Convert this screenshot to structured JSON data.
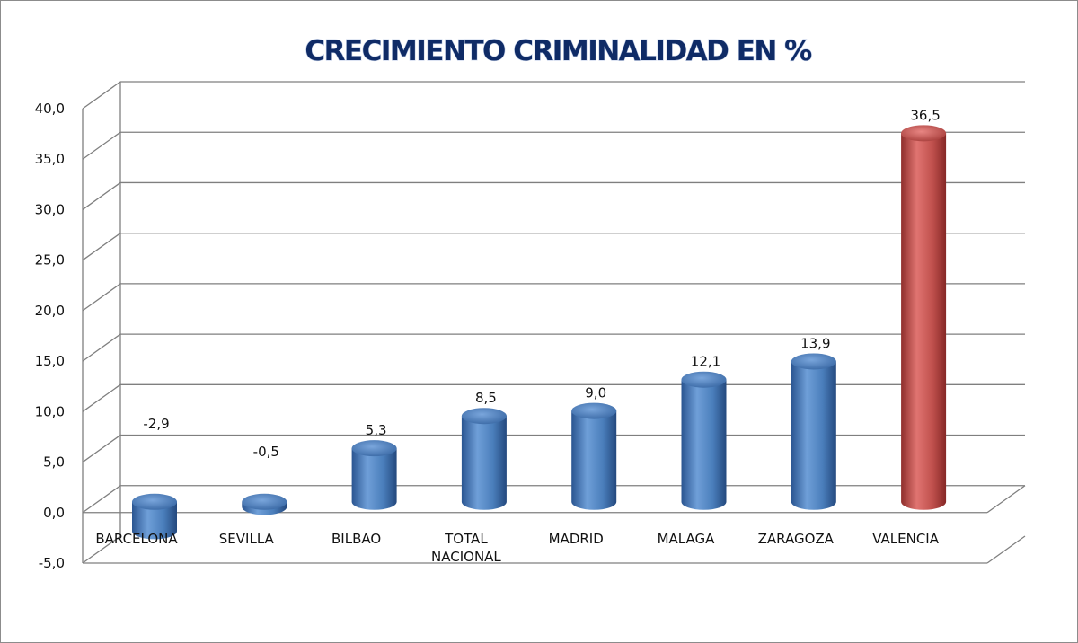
{
  "chart_data": {
    "type": "bar",
    "title": "CRECIMIENTO CRIMINALIDAD EN %",
    "categories": [
      "BARCELONA",
      "SEVILLA",
      "BILBAO",
      "TOTAL NACIONAL",
      "MADRID",
      "MALAGA",
      "ZARAGOZA",
      "VALENCIA"
    ],
    "values": [
      -2.9,
      -0.5,
      5.3,
      8.5,
      9.0,
      12.1,
      13.9,
      36.5
    ],
    "data_labels": [
      "-2,9",
      "-0,5",
      "5,3",
      "8,5",
      "9,0",
      "12,1",
      "13,9",
      "36,5"
    ],
    "ylim": [
      -5,
      40
    ],
    "y_ticks": [
      "-5,0",
      "0,0",
      "5,0",
      "10,0",
      "15,0",
      "20,0",
      "25,0",
      "30,0",
      "35,0",
      "40,0"
    ],
    "xlabel": "",
    "ylabel": "",
    "grid": true,
    "legend": "none",
    "colors": {
      "bar": "#4a7ebb",
      "highlight_bar": "#c0504d",
      "grid": "#7f7f7f",
      "title": "#0f2b66"
    },
    "highlight_index": 7
  }
}
